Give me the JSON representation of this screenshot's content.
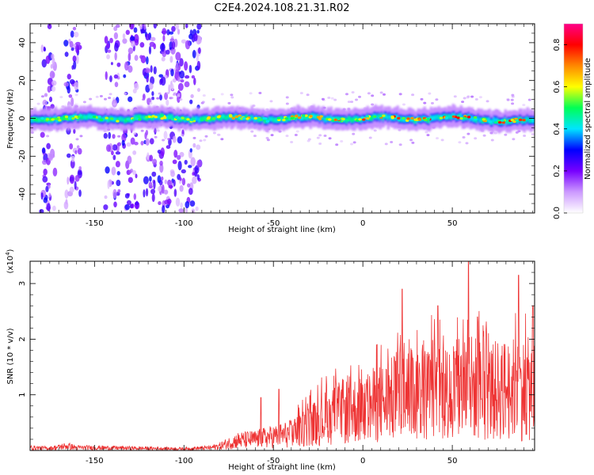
{
  "title": "C2E4.2024.108.21.31.R02",
  "chart_data": [
    {
      "type": "heatmap",
      "xlabel": "Height of straight line (km)",
      "ylabel": "Frequency (Hz)",
      "xlim": [
        -186,
        96
      ],
      "ylim": [
        -50,
        50
      ],
      "xticks": [
        -150,
        -100,
        -50,
        0,
        50
      ],
      "yticks": [
        -40,
        -20,
        0,
        20,
        40
      ],
      "ridge_frequency_hz": 0,
      "vertical_streaks_km": [
        -176,
        -162,
        -140,
        -130,
        -120,
        -110,
        -104,
        -95
      ],
      "colorbar": {
        "label": "Normalized spectral amplitude",
        "range": [
          0,
          0.9
        ],
        "ticks": [
          0.0,
          0.2,
          0.4,
          0.6,
          0.8
        ],
        "tick_labels": [
          "0.0",
          "0.2",
          "0.4",
          "0.6",
          "0.8"
        ],
        "colors": [
          "#ffffff",
          "#cc99ff",
          "#7700ff",
          "#0000ff",
          "#00e5ff",
          "#00ff55",
          "#ffff00",
          "#ff8800",
          "#ff0000",
          "#ff0088"
        ]
      }
    },
    {
      "type": "line",
      "xlabel": "Height of straight line (km)",
      "ylabel": "SNR (10 * v/v)",
      "exponent_label": "(x10",
      "exponent_power": "4",
      "exponent_close": ")",
      "xlim": [
        -186,
        96
      ],
      "ylim": [
        0,
        3.4
      ],
      "xticks": [
        -150,
        -100,
        -50,
        0,
        50
      ],
      "yticks": [
        1,
        2,
        3
      ],
      "color": "#ee3333",
      "profile": {
        "x": [
          -186,
          -175,
          -165,
          -160,
          -150,
          -100,
          -85,
          -80,
          -70,
          -60,
          -50,
          -40,
          -30,
          -20,
          -10,
          0,
          10,
          20,
          30,
          40,
          50,
          60,
          70,
          80,
          90,
          96
        ],
        "y": [
          0.05,
          0.04,
          0.08,
          0.05,
          0.05,
          0.03,
          0.05,
          0.08,
          0.18,
          0.2,
          0.25,
          0.3,
          0.45,
          0.6,
          0.7,
          0.75,
          0.85,
          0.95,
          1.0,
          1.05,
          1.05,
          1.15,
          1.05,
          1.1,
          1.1,
          1.1
        ]
      },
      "peaks": [
        {
          "x": -57,
          "y": 0.95
        },
        {
          "x": -47,
          "y": 1.1
        },
        {
          "x": 22,
          "y": 2.9
        },
        {
          "x": 42,
          "y": 2.6
        },
        {
          "x": 59,
          "y": 3.4
        },
        {
          "x": 64,
          "y": 2.4
        },
        {
          "x": 87,
          "y": 3.15
        },
        {
          "x": 95,
          "y": 2.6
        }
      ]
    }
  ]
}
